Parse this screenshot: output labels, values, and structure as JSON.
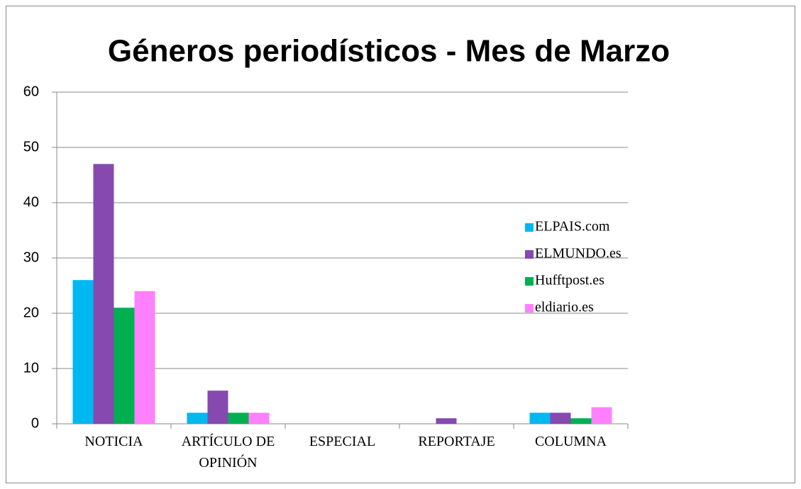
{
  "chart_data": {
    "type": "bar",
    "title": "Géneros periodísticos - Mes de Marzo",
    "categories": [
      "NOTICIA",
      "ARTÍCULO DE OPINIÓN",
      "ESPECIAL",
      "REPORTAJE",
      "COLUMNA"
    ],
    "series": [
      {
        "name": "ELPAIS.com",
        "color": "#00b8f0",
        "values": [
          26,
          2,
          0,
          0,
          2
        ]
      },
      {
        "name": "ELMUNDO.es",
        "color": "#8549b0",
        "values": [
          47,
          6,
          0,
          1,
          2
        ]
      },
      {
        "name": "Hufftpost.es",
        "color": "#00b050",
        "values": [
          21,
          2,
          0,
          0,
          1
        ]
      },
      {
        "name": "eldiario.es",
        "color": "#ff80ff",
        "values": [
          24,
          2,
          0,
          0,
          3
        ]
      }
    ],
    "ylim": [
      0,
      60
    ],
    "yticks": [
      0,
      10,
      20,
      30,
      40,
      50,
      60
    ],
    "grid": true,
    "legend": "right"
  }
}
